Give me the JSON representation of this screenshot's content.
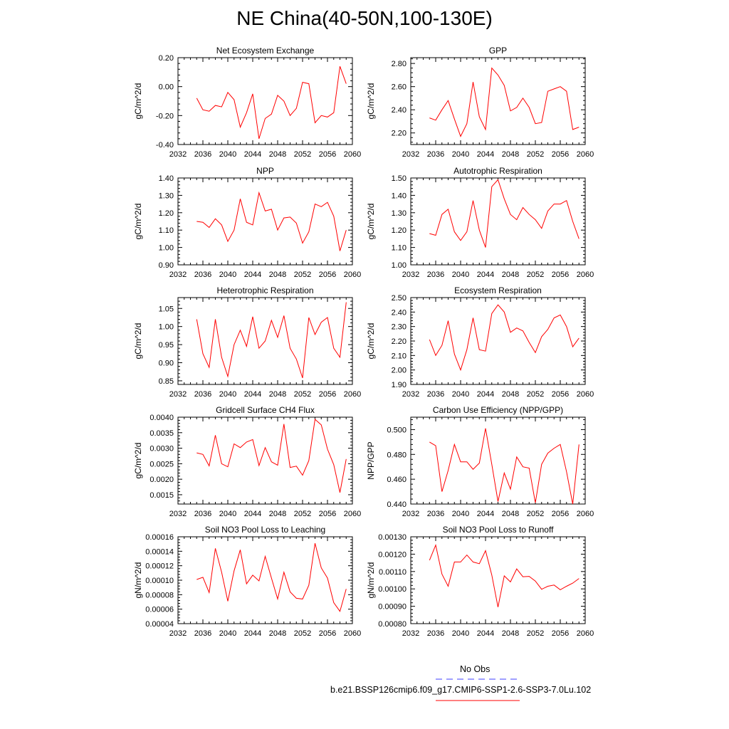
{
  "title": "NE China(40-50N,100-130E)",
  "legend": {
    "entries": [
      {
        "label": "No Obs",
        "color": "#4040ff",
        "style": "dashed"
      },
      {
        "label": "b.e21.BSSP126cmip6.f09_g17.CMIP6-SSP1-2.6-SSP3-7.0Lu.102",
        "color": "#ff0000",
        "style": "solid"
      }
    ]
  },
  "chart_data": [
    {
      "type": "line",
      "title": "Net Ecosystem Exchange",
      "ylabel": "gC/m^2/d",
      "xlim": [
        2032,
        2060
      ],
      "ylim": [
        -0.4,
        0.2
      ],
      "xticks": [
        "2032",
        "2036",
        "2040",
        "2044",
        "2048",
        "2052",
        "2056",
        "2060"
      ],
      "yticks": [
        "-0.40",
        "-0.20",
        "0.00",
        "0.20"
      ],
      "x": [
        2035,
        2036,
        2037,
        2038,
        2039,
        2040,
        2041,
        2042,
        2043,
        2044,
        2045,
        2046,
        2047,
        2048,
        2049,
        2050,
        2051,
        2052,
        2053,
        2054,
        2055,
        2056,
        2057,
        2058,
        2059
      ],
      "series": [
        {
          "values": [
            -0.08,
            -0.16,
            -0.17,
            -0.13,
            -0.14,
            -0.04,
            -0.09,
            -0.28,
            -0.18,
            -0.05,
            -0.36,
            -0.22,
            -0.19,
            -0.06,
            -0.1,
            -0.2,
            -0.15,
            0.03,
            0.02,
            -0.25,
            -0.2,
            -0.21,
            -0.18,
            0.14,
            0.02
          ],
          "color": "#ff0000"
        }
      ]
    },
    {
      "type": "line",
      "title": "GPP",
      "ylabel": "gC/m^2/d",
      "xlim": [
        2032,
        2060
      ],
      "ylim": [
        2.1,
        2.85
      ],
      "xticks": [
        "2032",
        "2036",
        "2040",
        "2044",
        "2048",
        "2052",
        "2056",
        "2060"
      ],
      "yticks": [
        "2.20",
        "2.40",
        "2.60",
        "2.80"
      ],
      "x": [
        2035,
        2036,
        2037,
        2038,
        2039,
        2040,
        2041,
        2042,
        2043,
        2044,
        2045,
        2046,
        2047,
        2048,
        2049,
        2050,
        2051,
        2052,
        2053,
        2054,
        2055,
        2056,
        2057,
        2058,
        2059
      ],
      "series": [
        {
          "values": [
            2.33,
            2.31,
            2.4,
            2.48,
            2.32,
            2.17,
            2.28,
            2.64,
            2.34,
            2.23,
            2.76,
            2.7,
            2.61,
            2.39,
            2.42,
            2.5,
            2.42,
            2.28,
            2.29,
            2.56,
            2.58,
            2.6,
            2.56,
            2.23,
            2.25
          ],
          "color": "#ff0000"
        }
      ]
    },
    {
      "type": "line",
      "title": "NPP",
      "ylabel": "gC/m^2/d",
      "xlim": [
        2032,
        2060
      ],
      "ylim": [
        0.9,
        1.4
      ],
      "xticks": [
        "2032",
        "2036",
        "2040",
        "2044",
        "2048",
        "2052",
        "2056",
        "2060"
      ],
      "yticks": [
        "0.90",
        "1.00",
        "1.10",
        "1.20",
        "1.30",
        "1.40"
      ],
      "x": [
        2035,
        2036,
        2037,
        2038,
        2039,
        2040,
        2041,
        2042,
        2043,
        2044,
        2045,
        2046,
        2047,
        2048,
        2049,
        2050,
        2051,
        2052,
        2053,
        2054,
        2055,
        2056,
        2057,
        2058,
        2059
      ],
      "series": [
        {
          "values": [
            1.15,
            1.145,
            1.115,
            1.165,
            1.13,
            1.035,
            1.1,
            1.28,
            1.145,
            1.13,
            1.315,
            1.21,
            1.22,
            1.1,
            1.17,
            1.175,
            1.14,
            1.025,
            1.09,
            1.25,
            1.235,
            1.26,
            1.18,
            0.98,
            1.1
          ],
          "color": "#ff0000"
        }
      ]
    },
    {
      "type": "line",
      "title": "Autotrophic Respiration",
      "ylabel": "gC/m^2/d",
      "xlim": [
        2032,
        2060
      ],
      "ylim": [
        1.0,
        1.5
      ],
      "xticks": [
        "2032",
        "2036",
        "2040",
        "2044",
        "2048",
        "2052",
        "2056",
        "2060"
      ],
      "yticks": [
        "1.00",
        "1.10",
        "1.20",
        "1.30",
        "1.40",
        "1.50"
      ],
      "x": [
        2035,
        2036,
        2037,
        2038,
        2039,
        2040,
        2041,
        2042,
        2043,
        2044,
        2045,
        2046,
        2047,
        2048,
        2049,
        2050,
        2051,
        2052,
        2053,
        2054,
        2055,
        2056,
        2057,
        2058,
        2059
      ],
      "series": [
        {
          "values": [
            1.18,
            1.17,
            1.29,
            1.32,
            1.19,
            1.14,
            1.19,
            1.37,
            1.2,
            1.1,
            1.45,
            1.49,
            1.38,
            1.29,
            1.26,
            1.33,
            1.29,
            1.26,
            1.21,
            1.31,
            1.35,
            1.35,
            1.37,
            1.25,
            1.15
          ],
          "color": "#ff0000"
        }
      ]
    },
    {
      "type": "line",
      "title": "Heterotrophic Respiration",
      "ylabel": "gC/m^2/d",
      "xlim": [
        2032,
        2060
      ],
      "ylim": [
        0.84,
        1.08
      ],
      "xticks": [
        "2032",
        "2036",
        "2040",
        "2044",
        "2048",
        "2052",
        "2056",
        "2060"
      ],
      "yticks": [
        "0.85",
        "0.90",
        "0.95",
        "1.00",
        "1.05"
      ],
      "x": [
        2035,
        2036,
        2037,
        2038,
        2039,
        2040,
        2041,
        2042,
        2043,
        2044,
        2045,
        2046,
        2047,
        2048,
        2049,
        2050,
        2051,
        2052,
        2053,
        2054,
        2055,
        2056,
        2057,
        2058,
        2059
      ],
      "series": [
        {
          "values": [
            1.02,
            0.925,
            0.887,
            1.02,
            0.915,
            0.862,
            0.95,
            0.99,
            0.945,
            1.027,
            0.94,
            0.96,
            1.017,
            0.97,
            1.03,
            0.94,
            0.91,
            0.858,
            1.025,
            0.978,
            1.012,
            1.025,
            0.94,
            0.915,
            1.067
          ],
          "color": "#ff0000"
        }
      ]
    },
    {
      "type": "line",
      "title": "Ecosystem Respiration",
      "ylabel": "gC/m^2/d",
      "xlim": [
        2032,
        2060
      ],
      "ylim": [
        1.9,
        2.5
      ],
      "xticks": [
        "2032",
        "2036",
        "2040",
        "2044",
        "2048",
        "2052",
        "2056",
        "2060"
      ],
      "yticks": [
        "1.90",
        "2.00",
        "2.10",
        "2.20",
        "2.30",
        "2.40",
        "2.50"
      ],
      "x": [
        2035,
        2036,
        2037,
        2038,
        2039,
        2040,
        2041,
        2042,
        2043,
        2044,
        2045,
        2046,
        2047,
        2048,
        2049,
        2050,
        2051,
        2052,
        2053,
        2054,
        2055,
        2056,
        2057,
        2058,
        2059
      ],
      "series": [
        {
          "values": [
            2.21,
            2.1,
            2.17,
            2.34,
            2.11,
            2.0,
            2.14,
            2.36,
            2.14,
            2.13,
            2.39,
            2.45,
            2.4,
            2.26,
            2.29,
            2.27,
            2.19,
            2.12,
            2.23,
            2.28,
            2.36,
            2.38,
            2.3,
            2.16,
            2.22
          ],
          "color": "#ff0000"
        }
      ]
    },
    {
      "type": "line",
      "title": "Gridcell Surface CH4 Flux",
      "ylabel": "gC/m^2/d",
      "xlim": [
        2032,
        2060
      ],
      "ylim": [
        0.0012,
        0.004
      ],
      "xticks": [
        "2032",
        "2036",
        "2040",
        "2044",
        "2048",
        "2052",
        "2056",
        "2060"
      ],
      "yticks": [
        "0.0015",
        "0.0020",
        "0.0025",
        "0.0030",
        "0.0035",
        "0.0040"
      ],
      "x": [
        2035,
        2036,
        2037,
        2038,
        2039,
        2040,
        2041,
        2042,
        2043,
        2044,
        2045,
        2046,
        2047,
        2048,
        2049,
        2050,
        2051,
        2052,
        2053,
        2054,
        2055,
        2056,
        2057,
        2058,
        2059
      ],
      "series": [
        {
          "values": [
            0.00285,
            0.0028,
            0.00243,
            0.00342,
            0.0025,
            0.0024,
            0.00314,
            0.00302,
            0.0032,
            0.00328,
            0.00244,
            0.00302,
            0.00256,
            0.00245,
            0.00378,
            0.00238,
            0.00242,
            0.00213,
            0.0026,
            0.00393,
            0.00375,
            0.00297,
            0.00247,
            0.00157,
            0.00265
          ],
          "color": "#ff0000"
        }
      ]
    },
    {
      "type": "line",
      "title": "Carbon Use Efficiency (NPP/GPP)",
      "ylabel": "NPP/GPP",
      "xlim": [
        2032,
        2060
      ],
      "ylim": [
        0.44,
        0.51
      ],
      "xticks": [
        "2032",
        "2036",
        "2040",
        "2044",
        "2048",
        "2052",
        "2056",
        "2060"
      ],
      "yticks": [
        "0.440",
        "0.460",
        "0.480",
        "0.500"
      ],
      "x": [
        2035,
        2036,
        2037,
        2038,
        2039,
        2040,
        2041,
        2042,
        2043,
        2044,
        2045,
        2046,
        2047,
        2048,
        2049,
        2050,
        2051,
        2052,
        2053,
        2054,
        2055,
        2056,
        2057,
        2058,
        2059
      ],
      "series": [
        {
          "values": [
            0.49,
            0.487,
            0.45,
            0.467,
            0.488,
            0.474,
            0.474,
            0.468,
            0.473,
            0.501,
            0.472,
            0.442,
            0.465,
            0.452,
            0.478,
            0.47,
            0.469,
            0.441,
            0.472,
            0.481,
            0.485,
            0.488,
            0.466,
            0.44,
            0.488
          ],
          "color": "#ff0000"
        }
      ]
    },
    {
      "type": "line",
      "title": "Soil NO3 Pool Loss to Leaching",
      "ylabel": "gN/m^2/d",
      "xlim": [
        2032,
        2060
      ],
      "ylim": [
        4e-05,
        0.00016
      ],
      "xticks": [
        "2032",
        "2036",
        "2040",
        "2044",
        "2048",
        "2052",
        "2056",
        "2060"
      ],
      "yticks": [
        "0.00004",
        "0.00006",
        "0.00008",
        "0.00010",
        "0.00012",
        "0.00014",
        "0.00016"
      ],
      "x": [
        2035,
        2036,
        2037,
        2038,
        2039,
        2040,
        2041,
        2042,
        2043,
        2044,
        2045,
        2046,
        2047,
        2048,
        2049,
        2050,
        2051,
        2052,
        2053,
        2054,
        2055,
        2056,
        2057,
        2058,
        2059
      ],
      "series": [
        {
          "values": [
            0.000101,
            0.000104,
            8.3e-05,
            0.000144,
            0.000111,
            7.1e-05,
            0.000113,
            0.000142,
            9.5e-05,
            0.000107,
            9.9e-05,
            0.000133,
            0.000103,
            7.4e-05,
            0.000111,
            8.4e-05,
            7.5e-05,
            7.4e-05,
            9.3e-05,
            0.000151,
            0.000117,
            0.000103,
            6.9e-05,
            5.7e-05,
            8.8e-05
          ],
          "color": "#ff0000"
        }
      ]
    },
    {
      "type": "line",
      "title": "Soil NO3 Pool Loss to Runoff",
      "ylabel": "gN/m^2/d",
      "xlim": [
        2032,
        2060
      ],
      "ylim": [
        0.0008,
        0.0013
      ],
      "xticks": [
        "2032",
        "2036",
        "2040",
        "2044",
        "2048",
        "2052",
        "2056",
        "2060"
      ],
      "yticks": [
        "0.00080",
        "0.00090",
        "0.00100",
        "0.00110",
        "0.00120",
        "0.00130"
      ],
      "x": [
        2035,
        2036,
        2037,
        2038,
        2039,
        2040,
        2041,
        2042,
        2043,
        2044,
        2045,
        2046,
        2047,
        2048,
        2049,
        2050,
        2051,
        2052,
        2053,
        2054,
        2055,
        2056,
        2057,
        2058,
        2059
      ],
      "series": [
        {
          "values": [
            0.001165,
            0.001252,
            0.001085,
            0.001015,
            0.001155,
            0.001155,
            0.001195,
            0.001155,
            0.001145,
            0.00122,
            0.00108,
            0.000895,
            0.001075,
            0.00104,
            0.001115,
            0.00107,
            0.001072,
            0.001045,
            0.000998,
            0.001015,
            0.001022,
            0.000995,
            0.001015,
            0.001033,
            0.00106
          ],
          "color": "#ff0000"
        }
      ]
    }
  ]
}
